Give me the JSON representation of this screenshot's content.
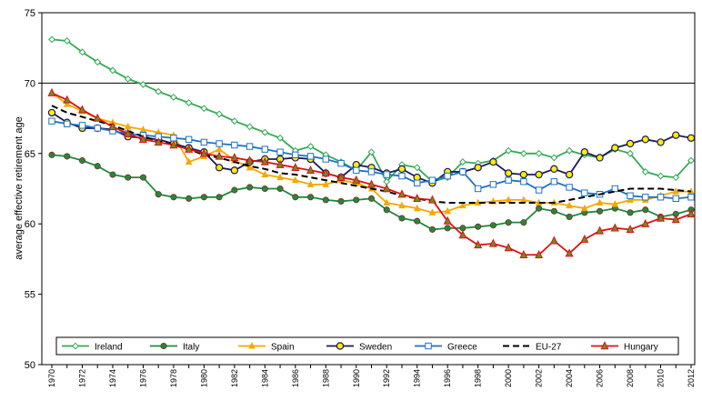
{
  "chart_data": {
    "type": "line",
    "title": "",
    "ylabel": "average effective retirement age",
    "xlabel": "",
    "ylim": [
      50,
      75
    ],
    "yticks": [
      "50",
      "55",
      "60",
      "65",
      "70",
      "75"
    ],
    "xticks": [
      "1970",
      "1972",
      "1974",
      "1976",
      "1978",
      "1980",
      "1982",
      "1984",
      "1986",
      "1988",
      "1990",
      "1992",
      "1994",
      "1996",
      "1998",
      "2000",
      "2002",
      "2004",
      "2006",
      "2008",
      "2010",
      "2012"
    ],
    "x": [
      1970,
      1971,
      1972,
      1973,
      1974,
      1975,
      1976,
      1977,
      1978,
      1979,
      1980,
      1981,
      1982,
      1983,
      1984,
      1985,
      1986,
      1987,
      1988,
      1989,
      1990,
      1991,
      1992,
      1993,
      1994,
      1995,
      1996,
      1997,
      1998,
      1999,
      2000,
      2001,
      2002,
      2003,
      2004,
      2005,
      2006,
      2007,
      2008,
      2009,
      2010,
      2011,
      2012
    ],
    "gridlines": [
      70
    ],
    "legend": "bottom",
    "series": [
      {
        "name": "Ireland",
        "color": "#33aa55",
        "marker": "diamond-open",
        "values": [
          73.1,
          73.0,
          72.2,
          71.5,
          70.9,
          70.3,
          69.9,
          69.4,
          69.0,
          68.6,
          68.2,
          67.8,
          67.3,
          66.9,
          66.5,
          66.1,
          65.2,
          65.5,
          64.9,
          64.4,
          63.8,
          65.1,
          63.0,
          64.2,
          64.0,
          63.0,
          63.3,
          64.4,
          64.3,
          64.5,
          65.2,
          65.0,
          65.0,
          64.7,
          65.2,
          64.9,
          64.7,
          65.3,
          65.0,
          63.7,
          63.4,
          63.3,
          64.5
        ]
      },
      {
        "name": "Italy",
        "color": "#1f8a3c",
        "marker": "circle-filled",
        "values": [
          64.9,
          64.8,
          64.5,
          64.1,
          63.5,
          63.3,
          63.3,
          62.1,
          61.9,
          61.8,
          61.9,
          61.9,
          62.4,
          62.6,
          62.5,
          62.5,
          61.9,
          61.9,
          61.7,
          61.6,
          61.7,
          61.8,
          61.0,
          60.4,
          60.2,
          59.6,
          59.7,
          59.7,
          59.8,
          59.9,
          60.1,
          60.1,
          61.1,
          60.9,
          60.5,
          60.8,
          60.9,
          61.1,
          60.8,
          61.0,
          60.5,
          60.7,
          61.0
        ]
      },
      {
        "name": "Spain",
        "color": "#f5a800",
        "marker": "triangle-filled",
        "values": [
          69.3,
          68.5,
          68.0,
          67.5,
          67.2,
          66.9,
          66.7,
          66.5,
          66.3,
          64.4,
          64.8,
          65.3,
          64.5,
          64.0,
          63.5,
          63.3,
          63.1,
          62.8,
          62.8,
          63.1,
          62.9,
          62.5,
          61.5,
          61.3,
          61.1,
          60.8,
          60.9,
          61.3,
          61.5,
          61.6,
          61.7,
          61.7,
          61.5,
          61.5,
          61.3,
          61.1,
          61.5,
          61.4,
          61.7,
          61.7,
          62.0,
          62.3,
          62.3
        ]
      },
      {
        "name": "Sweden",
        "color": "#1a1a60",
        "marker": "circle-yellow",
        "values": [
          67.9,
          67.2,
          66.8,
          66.8,
          66.7,
          66.2,
          66.1,
          66.0,
          65.7,
          65.4,
          65.1,
          64.0,
          63.8,
          64.4,
          64.6,
          64.6,
          64.7,
          64.6,
          63.6,
          63.3,
          64.2,
          64.0,
          63.6,
          63.9,
          63.3,
          62.9,
          63.7,
          63.7,
          64.0,
          64.4,
          63.6,
          63.5,
          63.5,
          63.9,
          63.5,
          65.1,
          64.7,
          65.4,
          65.7,
          66.0,
          65.8,
          66.3,
          66.1
        ]
      },
      {
        "name": "Greece",
        "color": "#1e73be",
        "marker": "square-open",
        "values": [
          67.3,
          67.1,
          67.0,
          66.8,
          66.6,
          66.4,
          66.3,
          66.2,
          66.1,
          66.0,
          65.8,
          65.7,
          65.6,
          65.5,
          65.3,
          65.1,
          64.9,
          64.8,
          64.6,
          64.3,
          63.8,
          63.7,
          63.5,
          63.4,
          62.9,
          63.1,
          63.4,
          63.7,
          62.5,
          62.8,
          63.1,
          63.0,
          62.4,
          63.0,
          62.6,
          62.2,
          62.1,
          62.5,
          62.0,
          61.9,
          61.9,
          61.8,
          61.9
        ]
      },
      {
        "name": "EU-27",
        "color": "#000000",
        "marker": "none",
        "dash": true,
        "values": [
          68.4,
          67.9,
          67.6,
          67.3,
          67.0,
          66.6,
          66.2,
          65.9,
          65.6,
          65.3,
          64.9,
          64.7,
          64.4,
          64.1,
          63.9,
          63.6,
          63.5,
          63.3,
          63.1,
          62.9,
          62.7,
          62.5,
          62.3,
          62.0,
          61.8,
          61.6,
          61.5,
          61.5,
          61.5,
          61.5,
          61.5,
          61.5,
          61.5,
          61.5,
          61.7,
          61.9,
          62.1,
          62.3,
          62.5,
          62.5,
          62.5,
          62.4,
          62.3
        ]
      },
      {
        "name": "Hungary",
        "color": "#dd1111",
        "marker": "triangle-green",
        "values": [
          69.3,
          68.8,
          68.1,
          67.5,
          66.9,
          66.4,
          66.0,
          65.8,
          65.6,
          65.3,
          65.0,
          64.8,
          64.7,
          64.5,
          64.4,
          64.2,
          64.0,
          63.8,
          63.6,
          63.3,
          63.1,
          62.8,
          62.5,
          62.1,
          61.8,
          61.7,
          60.2,
          59.2,
          58.5,
          58.6,
          58.3,
          57.8,
          57.8,
          58.8,
          57.9,
          58.9,
          59.5,
          59.7,
          59.6,
          60.0,
          60.4,
          60.3,
          60.7
        ]
      }
    ]
  }
}
